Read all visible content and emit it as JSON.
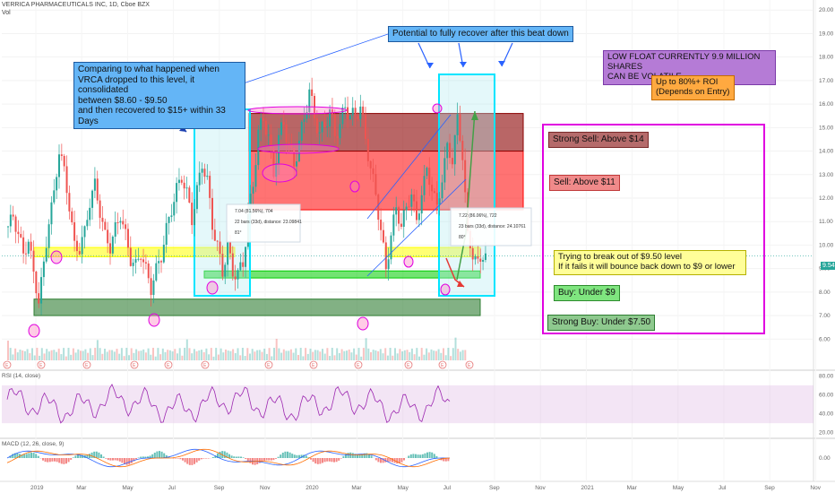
{
  "header": {
    "title": "VERRICA PHARMACEUTICALS INC, 1D, Cboe BZX",
    "volume_label": "Vol"
  },
  "panels": {
    "rsi_label": "RSI (14, close)",
    "macd_label": "MACD (12, 26, close, 9)"
  },
  "annotations": {
    "comparison": [
      "Comparing to what happened when",
      "VRCA dropped to this level, it consolidated",
      "between $8.60 - $9.50",
      "and then recovered to $15+ within 33 Days"
    ],
    "potential": "Potential to fully recover after this beat down",
    "low_float": [
      "LOW FLOAT CURRENTLY 9.9 MILLION SHARES",
      "CAN BE VOLATILE"
    ],
    "roi": [
      "Up to 80%+ ROI",
      "(Depends on Entry)"
    ],
    "strong_sell": "Strong Sell: Above $14",
    "sell": "Sell: Above $11",
    "break_out": [
      "Trying to break out of $9.50 level",
      "If it fails it will bounce back down to $9 or lower"
    ],
    "buy": "Buy: Under $9",
    "strong_buy": "Strong Buy: Under $7.50",
    "measure1": [
      "7.04 (81.56%), 704",
      "22 bars (33d), distance: 23.09841",
      "81°"
    ],
    "measure2": [
      "7.22 (86.06%), 722",
      "23 bars (33d), distance: 24.10761",
      "80°"
    ],
    "current_price": "9.54"
  },
  "colors": {
    "up": "#26a69a",
    "down": "#ef5350",
    "yellow_zone": "#ffff00",
    "green_zone": "#00cc00",
    "dark_green_zone": "#2e7d32",
    "red_zone": "#ff0000",
    "dark_red_zone": "#8b0000",
    "cyan_box": "#00e5ff",
    "magenta_box": "#e000e0",
    "rsi": "#9c27b0",
    "macd": "#2962ff",
    "signal": "#ff6d00"
  },
  "chart_data": {
    "type": "candlestick",
    "title": "VERRICA PHARMACEUTICALS INC, 1D, Cboe BZX",
    "y_axis": {
      "ticks": [
        20,
        19,
        18,
        17,
        16,
        15,
        14,
        13,
        12,
        11,
        10,
        9,
        8,
        7,
        6
      ],
      "range": [
        5.4,
        20.2
      ]
    },
    "x_axis": {
      "ticks": [
        "2019",
        "Mar",
        "May",
        "Jul",
        "Sep",
        "Nov",
        "2020",
        "Mar",
        "May",
        "Jul",
        "Sep",
        "Nov",
        "2021",
        "Mar",
        "May",
        "Jul",
        "Sep",
        "Nov"
      ]
    },
    "close_path": [
      [
        0,
        10.8
      ],
      [
        1,
        11.2
      ],
      [
        2,
        10.5
      ],
      [
        3,
        9.6
      ],
      [
        4,
        10.2
      ],
      [
        5,
        8.8
      ],
      [
        6,
        7.6
      ],
      [
        7,
        9.2
      ],
      [
        8,
        11.0
      ],
      [
        9,
        12.2
      ],
      [
        10,
        14.0
      ],
      [
        11,
        13.2
      ],
      [
        12,
        11.6
      ],
      [
        13,
        10.0
      ],
      [
        14,
        9.8
      ],
      [
        15,
        10.6
      ],
      [
        16,
        11.8
      ],
      [
        17,
        12.6
      ],
      [
        18,
        11.4
      ],
      [
        19,
        10.4
      ],
      [
        20,
        9.9
      ],
      [
        21,
        10.7
      ],
      [
        22,
        11.3
      ],
      [
        23,
        10.4
      ],
      [
        24,
        9.4
      ],
      [
        25,
        9.1
      ],
      [
        26,
        9.7
      ],
      [
        27,
        8.9
      ],
      [
        28,
        8.2
      ],
      [
        29,
        8.9
      ],
      [
        30,
        9.6
      ],
      [
        31,
        10.6
      ],
      [
        32,
        11.6
      ],
      [
        33,
        12.3
      ],
      [
        34,
        13.0
      ],
      [
        35,
        12.1
      ],
      [
        36,
        11.2
      ],
      [
        37,
        12.2
      ],
      [
        38,
        13.6
      ],
      [
        39,
        12.6
      ],
      [
        40,
        11.0
      ],
      [
        41,
        9.8
      ],
      [
        42,
        9.0
      ],
      [
        43,
        9.8
      ],
      [
        44,
        9.0
      ],
      [
        45,
        8.6
      ],
      [
        46,
        9.4
      ],
      [
        47,
        11.0
      ],
      [
        48,
        12.8
      ],
      [
        49,
        14.6
      ],
      [
        50,
        15.6
      ],
      [
        51,
        14.4
      ],
      [
        52,
        13.2
      ],
      [
        53,
        14.4
      ],
      [
        54,
        15.4
      ],
      [
        55,
        14.0
      ],
      [
        56,
        13.6
      ],
      [
        57,
        14.2
      ],
      [
        58,
        15.6
      ],
      [
        59,
        16.4
      ],
      [
        60,
        15.6
      ],
      [
        61,
        14.6
      ],
      [
        62,
        15.2
      ],
      [
        63,
        15.6
      ],
      [
        64,
        14.8
      ],
      [
        65,
        15.0
      ],
      [
        66,
        16.0
      ],
      [
        67,
        15.4
      ],
      [
        68,
        15.6
      ],
      [
        69,
        15.8
      ],
      [
        70,
        14.6
      ],
      [
        71,
        13.2
      ],
      [
        72,
        12.2
      ],
      [
        73,
        10.6
      ],
      [
        74,
        9.0
      ],
      [
        75,
        10.4
      ],
      [
        76,
        11.6
      ],
      [
        77,
        10.8
      ],
      [
        78,
        11.6
      ],
      [
        79,
        12.2
      ],
      [
        80,
        11.0
      ],
      [
        81,
        12.2
      ],
      [
        82,
        13.2
      ],
      [
        83,
        12.4
      ],
      [
        84,
        11.6
      ],
      [
        85,
        12.8
      ],
      [
        86,
        14.2
      ],
      [
        87,
        13.6
      ],
      [
        88,
        15.4
      ],
      [
        89,
        13.8
      ],
      [
        90,
        10.4
      ],
      [
        91,
        9.6
      ],
      [
        92,
        9.2
      ],
      [
        93,
        9.6
      ],
      [
        94,
        9.5
      ]
    ],
    "zones": [
      {
        "name": "Yellow support",
        "from": 9.5,
        "to": 9.9
      },
      {
        "name": "Green support",
        "from": 8.6,
        "to": 8.9
      },
      {
        "name": "Dark green support",
        "from": 7.0,
        "to": 7.7
      },
      {
        "name": "Red resistance",
        "from": 11.5,
        "to": 14.0
      },
      {
        "name": "Dark red resistance",
        "from": 14.0,
        "to": 15.6
      }
    ],
    "current_price": 9.54,
    "rsi_ticks": [
      80,
      60,
      40,
      20
    ],
    "macd_ticks": [
      0
    ]
  }
}
